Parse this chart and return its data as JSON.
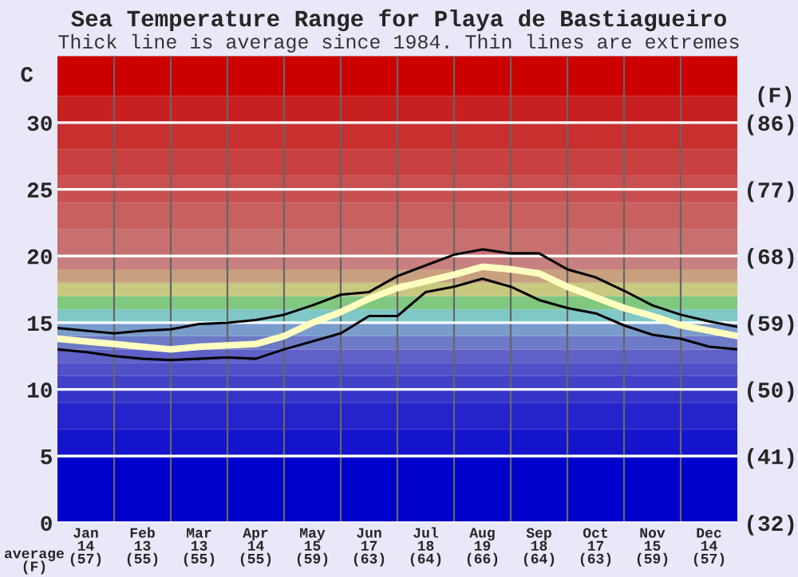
{
  "chart_data": {
    "type": "line",
    "title": "Sea Temperature Range for Playa de Bastiagueiro",
    "subtitle": "Thick line is average since 1984. Thin lines are extremes",
    "ylabel": "C",
    "y2label": "(F)",
    "annotations": [
      "average\n(F)"
    ],
    "categories": [
      null,
      "Jan\n14\n(57)",
      null,
      "Feb\n13\n(55)",
      null,
      "Mar\n13\n(55)",
      null,
      "Apr\n14\n(55)",
      null,
      "May\n15\n(59)",
      null,
      "Jun\n17\n(63)",
      null,
      "Jul\n18\n(64)",
      null,
      "Aug\n19\n(66)",
      null,
      "Sep\n18\n(64)",
      null,
      "Oct\n17\n(63)",
      null,
      "Nov\n15\n(59)",
      null,
      "Dec\n14\n(57)",
      null
    ],
    "ylim": [
      0,
      35
    ],
    "yticks": [
      0,
      5,
      10,
      15,
      20,
      25,
      30
    ],
    "y2lim": [
      32,
      95
    ],
    "y2ticks": [
      {
        "value": 32,
        "label": "(32)"
      },
      {
        "value": 41,
        "label": "(41)"
      },
      {
        "value": 50,
        "label": "(50)"
      },
      {
        "value": 59,
        "label": "(59)"
      },
      {
        "value": 68,
        "label": "(68)"
      },
      {
        "value": 77,
        "label": "(77)"
      },
      {
        "value": 86,
        "label": "(86)"
      }
    ],
    "grid": true,
    "series": [
      {
        "color": "#000000",
        "values": [
          14.6,
          14.4,
          14.2,
          14.4,
          14.5,
          14.9,
          15.0,
          15.2,
          15.6,
          16.3,
          17.1,
          17.3,
          18.5,
          19.3,
          20.1,
          20.5,
          20.2,
          20.2,
          19.0,
          18.4,
          17.4,
          16.3,
          15.6,
          15.1,
          14.7
        ]
      },
      {
        "color": "#000000",
        "values": [
          13.0,
          12.8,
          12.5,
          12.3,
          12.2,
          12.3,
          12.4,
          12.3,
          13.0,
          13.6,
          14.2,
          15.5,
          15.5,
          17.3,
          17.7,
          18.3,
          17.7,
          16.7,
          16.1,
          15.7,
          14.8,
          14.1,
          13.8,
          13.2,
          13.0
        ]
      },
      {
        "color": "#ffffc0",
        "values": [
          13.8,
          13.6,
          13.4,
          13.2,
          13.0,
          13.2,
          13.3,
          13.4,
          14.0,
          15.0,
          15.8,
          16.8,
          17.6,
          18.1,
          18.6,
          19.2,
          19.0,
          18.7,
          17.7,
          16.9,
          16.1,
          15.5,
          14.8,
          14.4,
          14.0
        ]
      }
    ],
    "bands": [
      {
        "axis": "y",
        "from": 0,
        "to": 5,
        "color": "#0000cc"
      },
      {
        "axis": "y",
        "from": 5,
        "to": 7,
        "color": "#1414cc"
      },
      {
        "axis": "y",
        "from": 7,
        "to": 9,
        "color": "#2424cc"
      },
      {
        "axis": "y",
        "from": 9,
        "to": 10,
        "color": "#3434c8"
      },
      {
        "axis": "y",
        "from": 10,
        "to": 11,
        "color": "#4242c8"
      },
      {
        "axis": "y",
        "from": 11,
        "to": 12,
        "color": "#5050c8"
      },
      {
        "axis": "y",
        "from": 12,
        "to": 13,
        "color": "#6060c8"
      },
      {
        "axis": "y",
        "from": 13,
        "to": 14,
        "color": "#6c7ac8"
      },
      {
        "axis": "y",
        "from": 14,
        "to": 15,
        "color": "#7a9ccc"
      },
      {
        "axis": "y",
        "from": 15,
        "to": 16,
        "color": "#80c8c8"
      },
      {
        "axis": "y",
        "from": 16,
        "to": 17,
        "color": "#80c880"
      },
      {
        "axis": "y",
        "from": 17,
        "to": 18,
        "color": "#c8c880"
      },
      {
        "axis": "y",
        "from": 18,
        "to": 19,
        "color": "#c8a080"
      },
      {
        "axis": "y",
        "from": 19,
        "to": 20,
        "color": "#c88080"
      },
      {
        "axis": "y",
        "from": 20,
        "to": 22,
        "color": "#c87070"
      },
      {
        "axis": "y",
        "from": 22,
        "to": 24,
        "color": "#c86060"
      },
      {
        "axis": "y",
        "from": 24,
        "to": 26,
        "color": "#c85050"
      },
      {
        "axis": "y",
        "from": 26,
        "to": 28,
        "color": "#c84040"
      },
      {
        "axis": "y",
        "from": 28,
        "to": 30,
        "color": "#c83030"
      },
      {
        "axis": "y",
        "from": 30,
        "to": 32,
        "color": "#c82020"
      },
      {
        "axis": "y",
        "from": 32,
        "to": 35,
        "color": "#cc0000"
      }
    ]
  }
}
